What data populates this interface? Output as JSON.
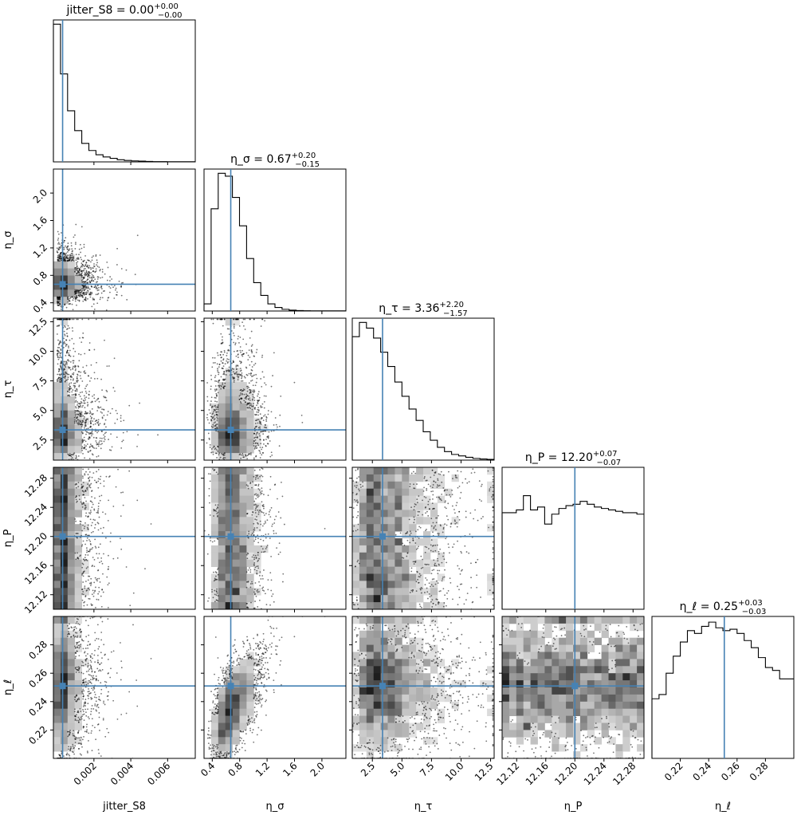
{
  "chart_data": {
    "type": "corner",
    "truth_color": "#4682b4",
    "parameters": [
      {
        "name": "jitter_S8",
        "axis_label": "jitter_S8",
        "title": "jitter_S8 = 0.00",
        "title_sup": "+0.00",
        "title_sub": "−0.00",
        "range": [
          -0.0002,
          0.0075
        ],
        "truth": 0.0003,
        "ticks": [
          0.002,
          0.004,
          0.006
        ],
        "tick_labels": [
          "0.002",
          "0.004",
          "0.006"
        ],
        "hist": [
          0.97,
          0.62,
          0.36,
          0.22,
          0.13,
          0.08,
          0.05,
          0.035,
          0.025,
          0.015,
          0.01,
          0.007,
          0.005,
          0.003,
          0.002,
          0.002,
          0.001,
          0.001,
          0.001,
          0.001
        ]
      },
      {
        "name": "eta_sigma",
        "axis_label": "η_σ",
        "title": "η_σ = 0.67",
        "title_sup": "+0.20",
        "title_sub": "−0.15",
        "range": [
          0.28,
          2.35
        ],
        "truth": 0.67,
        "ticks": [
          0.4,
          0.8,
          1.2,
          1.6,
          2.0
        ],
        "tick_labels": [
          "0.4",
          "0.8",
          "1.2",
          "1.6",
          "2.0"
        ],
        "hist": [
          0.05,
          0.72,
          0.97,
          0.95,
          0.8,
          0.6,
          0.37,
          0.2,
          0.11,
          0.05,
          0.025,
          0.012,
          0.006,
          0.003,
          0.002,
          0.001,
          0.001,
          0.001,
          0.001,
          0.001
        ]
      },
      {
        "name": "eta_tau",
        "axis_label": "η_τ",
        "title": "η_τ = 3.36",
        "title_sup": "+2.20",
        "title_sub": "−1.57",
        "range": [
          0.8,
          12.8
        ],
        "truth": 3.36,
        "ticks": [
          2.5,
          5.0,
          7.5,
          10.0,
          12.5
        ],
        "tick_labels": [
          "2.5",
          "5.0",
          "7.5",
          "10.0",
          "12.5"
        ],
        "hist": [
          0.87,
          0.97,
          0.93,
          0.86,
          0.76,
          0.66,
          0.55,
          0.45,
          0.36,
          0.28,
          0.2,
          0.14,
          0.09,
          0.06,
          0.04,
          0.03,
          0.02,
          0.012,
          0.008,
          0.005
        ]
      },
      {
        "name": "eta_P",
        "axis_label": "η_P",
        "title": "η_P = 12.20",
        "title_sup": "+0.07",
        "title_sub": "−0.07",
        "range": [
          12.1,
          12.295
        ],
        "truth": 12.2,
        "ticks": [
          12.12,
          12.16,
          12.2,
          12.24,
          12.28
        ],
        "tick_labels": [
          "12.12",
          "12.16",
          "12.20",
          "12.24",
          "12.28"
        ],
        "hist": [
          0.68,
          0.68,
          0.7,
          0.8,
          0.7,
          0.72,
          0.6,
          0.67,
          0.71,
          0.73,
          0.74,
          0.76,
          0.74,
          0.72,
          0.71,
          0.7,
          0.69,
          0.68,
          0.68,
          0.67
        ]
      },
      {
        "name": "eta_ell",
        "axis_label": "η_ℓ",
        "title": "η_ℓ = 0.25",
        "title_sup": "+0.03",
        "title_sub": "−0.03",
        "range": [
          0.2,
          0.3
        ],
        "truth": 0.251,
        "ticks": [
          0.22,
          0.24,
          0.26,
          0.28
        ],
        "tick_labels": [
          "0.22",
          "0.24",
          "0.26",
          "0.28"
        ],
        "hist": [
          0.42,
          0.45,
          0.6,
          0.72,
          0.82,
          0.9,
          0.88,
          0.93,
          0.96,
          0.92,
          0.9,
          0.91,
          0.88,
          0.83,
          0.78,
          0.71,
          0.64,
          0.62,
          0.56,
          0.56
        ]
      }
    ]
  }
}
